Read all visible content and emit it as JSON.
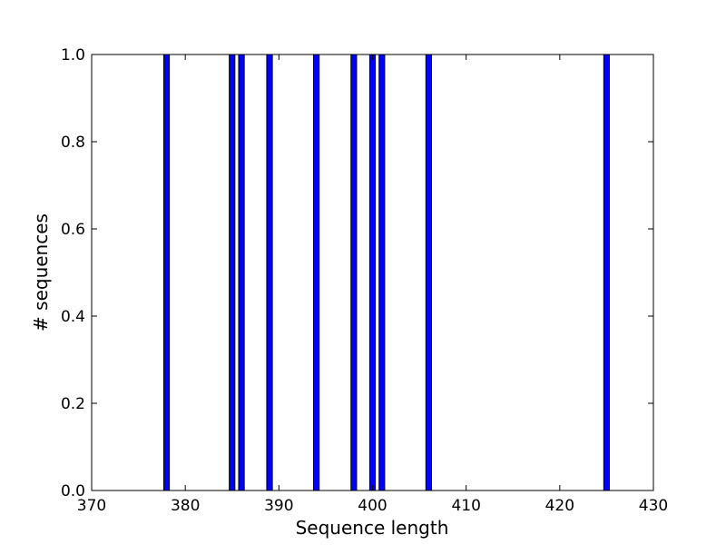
{
  "chart_data": {
    "type": "bar",
    "xlabel": "Sequence length",
    "ylabel": "# sequences",
    "xlim": [
      370,
      430
    ],
    "ylim": [
      0.0,
      1.0
    ],
    "x_ticks": [
      "370",
      "380",
      "390",
      "400",
      "410",
      "420",
      "430"
    ],
    "y_ticks": [
      "0.0",
      "0.2",
      "0.4",
      "0.6",
      "0.8",
      "1.0"
    ],
    "bars": [
      {
        "x": 378,
        "value": 1.0
      },
      {
        "x": 385,
        "value": 1.0
      },
      {
        "x": 386,
        "value": 1.0
      },
      {
        "x": 389,
        "value": 1.0
      },
      {
        "x": 394,
        "value": 1.0
      },
      {
        "x": 398,
        "value": 1.0
      },
      {
        "x": 400,
        "value": 1.0
      },
      {
        "x": 401,
        "value": 1.0
      },
      {
        "x": 406,
        "value": 1.0
      },
      {
        "x": 425,
        "value": 1.0
      }
    ],
    "bar_color": "#0000ff",
    "grid": false
  }
}
